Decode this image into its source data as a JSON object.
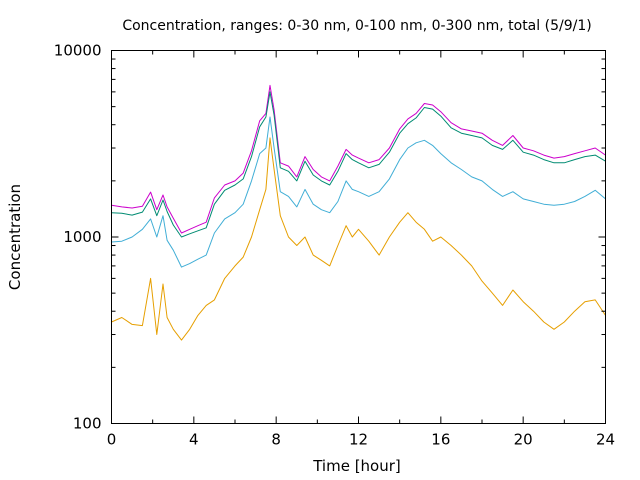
{
  "chart_data": {
    "type": "line",
    "title": "Concentration, ranges: 0-30 nm, 0-100 nm, 0-300 nm, total (5/9/1)",
    "xlabel": "Time [hour]",
    "ylabel": "Concentration",
    "xlim": [
      0,
      24
    ],
    "ylim": [
      100,
      10000
    ],
    "yscale": "log",
    "grid": false,
    "legend": "none",
    "x_ticks": [
      {
        "value": 0,
        "label": "0"
      },
      {
        "value": 4,
        "label": "4"
      },
      {
        "value": 8,
        "label": "8"
      },
      {
        "value": 12,
        "label": "12"
      },
      {
        "value": 16,
        "label": "16"
      },
      {
        "value": 20,
        "label": "20"
      },
      {
        "value": 24,
        "label": "24"
      }
    ],
    "y_ticks": [
      {
        "value": 100,
        "label": "100"
      },
      {
        "value": 1000,
        "label": "1000"
      },
      {
        "value": 10000,
        "label": "10000"
      }
    ],
    "x": [
      0,
      0.5,
      1,
      1.5,
      1.9,
      2.2,
      2.5,
      2.7,
      3,
      3.4,
      3.8,
      4.2,
      4.6,
      5,
      5.5,
      6,
      6.4,
      6.8,
      7.2,
      7.5,
      7.7,
      7.9,
      8.2,
      8.6,
      9,
      9.4,
      9.8,
      10.2,
      10.6,
      11,
      11.4,
      11.7,
      12,
      12.5,
      13,
      13.5,
      14,
      14.4,
      14.8,
      15.2,
      15.6,
      16,
      16.5,
      17,
      17.5,
      18,
      18.5,
      19,
      19.5,
      20,
      20.5,
      21,
      21.5,
      22,
      22.5,
      23,
      23.5,
      24
    ],
    "series": [
      {
        "color": "#cc00cc",
        "values": [
          1480,
          1450,
          1430,
          1460,
          1740,
          1400,
          1680,
          1450,
          1260,
          1050,
          1100,
          1150,
          1200,
          1620,
          1900,
          2000,
          2200,
          2900,
          4200,
          4600,
          6500,
          4800,
          2500,
          2400,
          2100,
          2700,
          2300,
          2100,
          2000,
          2400,
          2950,
          2750,
          2650,
          2500,
          2600,
          3000,
          3800,
          4300,
          4600,
          5200,
          5100,
          4700,
          4100,
          3800,
          3700,
          3600,
          3300,
          3100,
          3500,
          3000,
          2900,
          2750,
          2650,
          2700,
          2800,
          2900,
          3000,
          2750
        ]
      },
      {
        "color": "#008b72",
        "values": [
          1350,
          1340,
          1310,
          1360,
          1600,
          1300,
          1580,
          1370,
          1160,
          1000,
          1040,
          1080,
          1120,
          1500,
          1780,
          1900,
          2050,
          2700,
          3900,
          4400,
          6000,
          4500,
          2350,
          2250,
          2000,
          2550,
          2150,
          2000,
          1900,
          2250,
          2800,
          2600,
          2500,
          2350,
          2450,
          2850,
          3600,
          4050,
          4350,
          4950,
          4850,
          4450,
          3850,
          3600,
          3500,
          3400,
          3100,
          2950,
          3300,
          2850,
          2750,
          2600,
          2500,
          2500,
          2600,
          2700,
          2750,
          2550
        ]
      },
      {
        "color": "#41aed6",
        "values": [
          940,
          950,
          1000,
          1100,
          1250,
          1000,
          1300,
          960,
          850,
          690,
          720,
          760,
          800,
          1050,
          1250,
          1350,
          1500,
          2000,
          2800,
          3000,
          4400,
          3000,
          1750,
          1650,
          1450,
          1800,
          1500,
          1400,
          1350,
          1550,
          2000,
          1800,
          1750,
          1650,
          1750,
          2050,
          2600,
          3000,
          3200,
          3300,
          3100,
          2800,
          2500,
          2300,
          2100,
          2000,
          1800,
          1650,
          1750,
          1600,
          1550,
          1500,
          1480,
          1500,
          1550,
          1650,
          1780,
          1600
        ]
      },
      {
        "color": "#e69f00",
        "values": [
          350,
          370,
          340,
          335,
          600,
          300,
          560,
          370,
          320,
          280,
          320,
          380,
          430,
          460,
          600,
          700,
          780,
          1000,
          1400,
          1800,
          3400,
          2300,
          1300,
          1000,
          900,
          1000,
          800,
          750,
          700,
          900,
          1150,
          1000,
          1100,
          950,
          800,
          1000,
          1200,
          1350,
          1200,
          1100,
          950,
          1000,
          900,
          800,
          700,
          580,
          500,
          430,
          520,
          450,
          400,
          350,
          320,
          350,
          400,
          450,
          460,
          380
        ]
      }
    ]
  }
}
